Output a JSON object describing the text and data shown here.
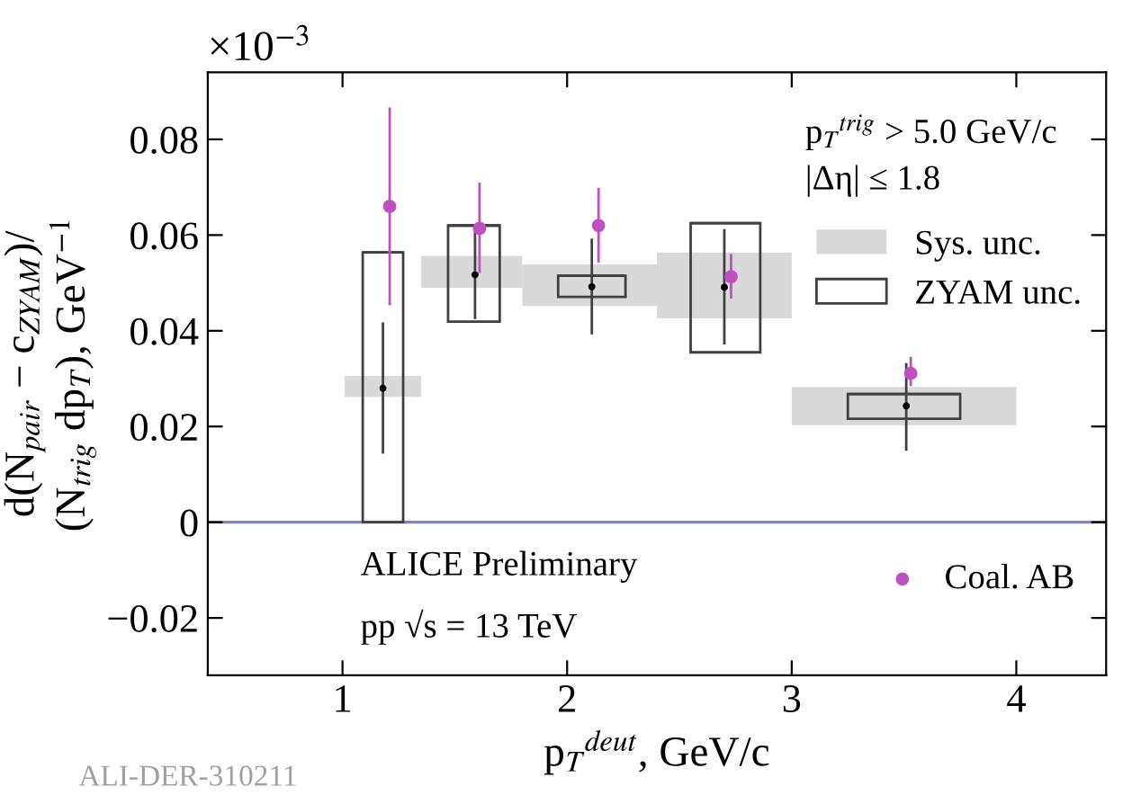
{
  "chart_data": {
    "type": "scatter",
    "xlabel": "p$_{T}$$^{deut}$, GeV/c",
    "ylabel": "d(N$_{pair}$ − c$_{ZYAM}$)/\n(N$_{trig}$ dp$_{T}$), GeV$^{−1}$",
    "series": [
      {
        "name": "Sys. unc.",
        "type": "bar",
        "color": "#d9d9d9",
        "x": [
          1.18,
          1.59,
          2.11,
          2.7,
          3.51
        ],
        "base": [
          0.0262,
          0.049,
          0.0452,
          0.0426,
          0.0203
        ],
        "values": [
          0.0041,
          0.0064,
          0.0084,
          0.0135,
          0.0077
        ],
        "xerrors": [
          [
            1.01,
            1.35
          ],
          [
            1.35,
            1.8
          ],
          [
            1.8,
            2.4
          ],
          [
            2.4,
            3.0
          ],
          [
            3.0,
            4.0
          ]
        ]
      },
      {
        "name": "ZYAM unc.",
        "type": "bar",
        "color": "#404040",
        "x": [
          1.18,
          1.59,
          2.11,
          2.7,
          3.51
        ],
        "base": [
          0,
          0.0419,
          0.0471,
          0.0355,
          0.0216
        ],
        "values": [
          0.0564,
          0.0201,
          0.0044,
          0.027,
          0.0052
        ],
        "xerrors": [
          [
            1.09,
            1.27
          ],
          [
            1.47,
            1.7
          ],
          [
            1.96,
            2.26
          ],
          [
            2.55,
            2.86
          ],
          [
            3.25,
            3.75
          ]
        ]
      },
      {
        "color": "#000000",
        "x": [
          1.18,
          1.59,
          2.11,
          2.7,
          3.51
        ],
        "values": [
          0.028,
          0.0517,
          0.0492,
          0.0491,
          0.0243
        ],
        "errors": [
          [
            0.0146,
            0.0415
          ],
          [
            0.0427,
            0.0607
          ],
          [
            0.0395,
            0.059
          ],
          [
            0.0374,
            0.061
          ],
          [
            0.0152,
            0.033
          ]
        ]
      },
      {
        "name": "Coal. AB",
        "color": "#c050c0",
        "x": [
          1.21,
          1.61,
          2.14,
          2.73,
          3.53
        ],
        "values": [
          0.066,
          0.0614,
          0.062,
          0.0513,
          0.0311
        ],
        "errors": [
          [
            0.0456,
            0.0864
          ],
          [
            0.0523,
            0.0707
          ],
          [
            0.0545,
            0.0696
          ],
          [
            0.047,
            0.0558
          ],
          [
            0.0287,
            0.0343
          ]
        ]
      }
    ],
    "xlim": [
      0.4,
      4.4
    ],
    "xticks": [
      1,
      2,
      3,
      4
    ],
    "ylim": [
      -0.032,
      0.094
    ],
    "yticks": [
      {
        "value": -0.02,
        "label": "−0.02"
      },
      0,
      0.02,
      0.04,
      0.06,
      0.08
    ],
    "ref_lines": [
      {
        "axis": "y",
        "value": 0,
        "color": "#8080d0"
      }
    ],
    "annotations": [
      "×10$^{−3}$",
      "p$_{T}$$^{trig}$ > 5.0 GeV/c",
      "|Δη| ≤ 1.8",
      "ALICE Preliminary",
      "pp √s = 13 TeV",
      "ALI-DER-310211"
    ],
    "legend": "right",
    "marker": "circle",
    "grid": false
  }
}
